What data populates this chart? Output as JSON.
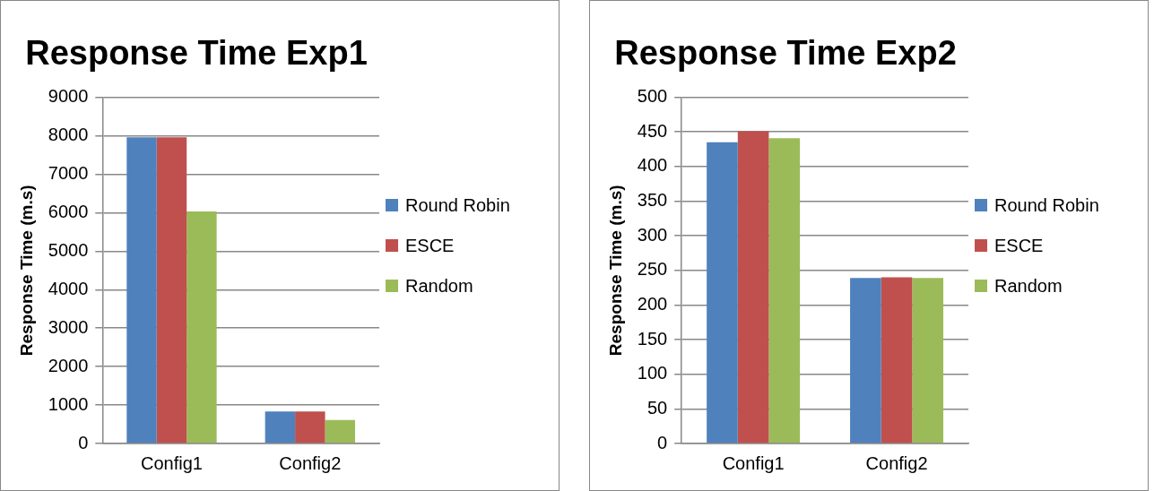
{
  "chart_data": [
    {
      "type": "bar",
      "title": "Response Time Exp1",
      "ylabel": "Response Time (m.s)",
      "categories": [
        "Config1",
        "Config2"
      ],
      "series": [
        {
          "name": "Round Robin",
          "color": "#4f81bd",
          "values": [
            7960,
            830
          ]
        },
        {
          "name": "ESCE",
          "color": "#c0504d",
          "values": [
            7960,
            830
          ]
        },
        {
          "name": "Random",
          "color": "#9bbb59",
          "values": [
            6030,
            610
          ]
        }
      ],
      "ylim": [
        0,
        9000
      ],
      "yticks": [
        0,
        1000,
        2000,
        3000,
        4000,
        5000,
        6000,
        7000,
        8000,
        9000
      ],
      "grid": "y",
      "legend": "right"
    },
    {
      "type": "bar",
      "title": "Response Time Exp2",
      "ylabel": "Response Time (m.s)",
      "categories": [
        "Config1",
        "Config2"
      ],
      "series": [
        {
          "name": "Round Robin",
          "color": "#4f81bd",
          "values": [
            435,
            239
          ]
        },
        {
          "name": "ESCE",
          "color": "#c0504d",
          "values": [
            451,
            240
          ]
        },
        {
          "name": "Random",
          "color": "#9bbb59",
          "values": [
            441,
            239
          ]
        }
      ],
      "ylim": [
        0,
        500
      ],
      "yticks": [
        0,
        50,
        100,
        150,
        200,
        250,
        300,
        350,
        400,
        450,
        500
      ],
      "grid": "y",
      "legend": "right"
    }
  ]
}
